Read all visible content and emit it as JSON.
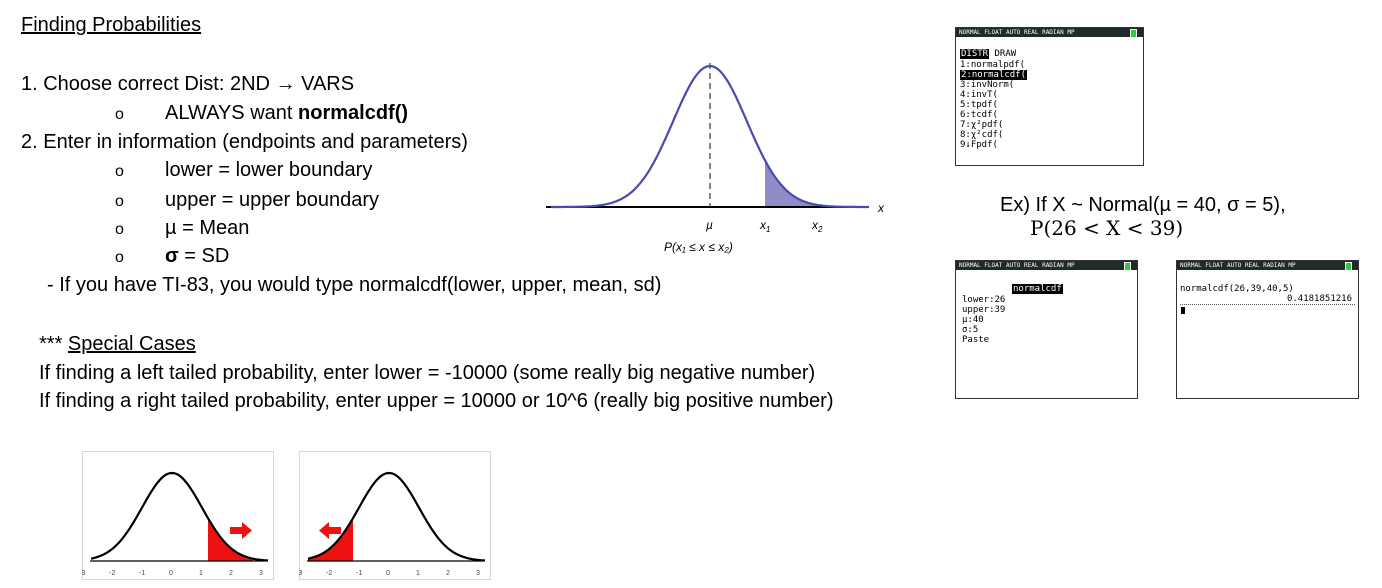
{
  "title": "Finding Probabilities",
  "steps": {
    "step1": "1. Choose correct Dist: 2ND → VARS",
    "step1_sub": {
      "bullet": "o",
      "prefix": "ALWAYS want ",
      "bold": "normalcdf()"
    },
    "step2": "2. Enter in information (endpoints and parameters)",
    "step2_subs": [
      {
        "bullet": "o",
        "text": "lower = lower boundary",
        "bold": ""
      },
      {
        "bullet": "o",
        "text": "upper = upper boundary",
        "bold": ""
      },
      {
        "bullet": "o",
        "text": "µ = Mean",
        "bold": ""
      },
      {
        "bullet": "o",
        "text": " = SD",
        "bold": "σ"
      }
    ],
    "ti83_note": "- If you have TI-83, you would type normalcdf(lower, upper, mean, sd)"
  },
  "special": {
    "stars": "*** ",
    "heading": "Special Cases",
    "left": "If finding a left tailed probability, enter lower = -10000 (some really big negative number)",
    "right": "If finding a right tailed probability, enter upper = 10000 or 10^6 (really big positive number)"
  },
  "normal_figure": {
    "x_axis_label": "x",
    "mu_label": "µ",
    "x1_label": "x",
    "x1_sub": "1",
    "x2_label": "x",
    "x2_sub": "2",
    "prob_label": "P(x₁ ≤ x ≤ x₂)",
    "shade_color": "#8d8dc8",
    "curve_color": "#4a4ab0"
  },
  "calc_status": "NORMAL FLOAT AUTO REAL RADIAN MP",
  "calc_menu": {
    "tabs": [
      "DISTR",
      "DRAW"
    ],
    "items": [
      "1:normalpdf(",
      "2:normalcdf(",
      "3:invNorm(",
      "4:invT(",
      "5:tpdf(",
      "6:tcdf(",
      "7:χ²pdf(",
      "8:χ²cdf(",
      "9↓Fpdf("
    ]
  },
  "example": {
    "line1": "Ex) If X ~ Normal(µ = 40, σ = 5),",
    "line2": "P(26 < X < 39)"
  },
  "calc_input": {
    "header": "normalcdf",
    "fields": [
      "lower:26",
      "upper:39",
      "µ:40",
      "σ:5",
      "Paste"
    ]
  },
  "calc_result": {
    "command": "normalcdf(26,39,40,5)",
    "result": "0.4181851216"
  },
  "tail_charts": {
    "ticks": [
      "-3",
      "-2",
      "-1",
      "0",
      "1",
      "2",
      "3"
    ],
    "fill_color": "#ee1111",
    "right_tail": {
      "shade_from": 1.2,
      "arrow": "right"
    },
    "left_tail": {
      "shade_to": -1.2,
      "arrow": "left"
    }
  }
}
